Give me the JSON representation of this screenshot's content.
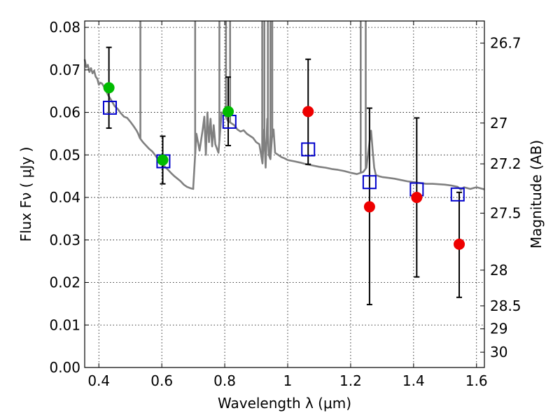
{
  "chart_data": {
    "type": "scatter",
    "xlabel": "Wavelength  λ (μm)",
    "ylabel": "Flux  Fν  ( μJy )",
    "y2label": "Magnitude (AB)",
    "xlim": [
      0.355,
      1.625
    ],
    "ylim": [
      0.0,
      0.0815
    ],
    "grid": true,
    "x_ticks": [
      0.4,
      0.6,
      0.8,
      1.0,
      1.2,
      1.4,
      1.6
    ],
    "x_tick_labels": [
      "0.4",
      "0.6",
      "0.8",
      "1",
      "1.2",
      "1.4",
      "1.6"
    ],
    "y_ticks": [
      0.0,
      0.01,
      0.02,
      0.03,
      0.04,
      0.05,
      0.06,
      0.07,
      0.08
    ],
    "y_tick_labels": [
      "0.00",
      "0.01",
      "0.02",
      "0.03",
      "0.04",
      "0.05",
      "0.06",
      "0.07",
      "0.08"
    ],
    "y2_ticks": [
      {
        "flux": 0.0763,
        "label": "26.7"
      },
      {
        "flux": 0.0575,
        "label": "27"
      },
      {
        "flux": 0.0479,
        "label": "27.2"
      },
      {
        "flux": 0.0363,
        "label": "27.5"
      },
      {
        "flux": 0.0229,
        "label": "28"
      },
      {
        "flux": 0.0145,
        "label": "28.5"
      },
      {
        "flux": 0.0091,
        "label": "29"
      },
      {
        "flux": 0.0036,
        "label": "30"
      }
    ],
    "colors": {
      "model": "#808080",
      "detection": "#00bb00",
      "upper_limit": "#ee0000",
      "model_flux": "#0000cc",
      "error_bar": "#000000"
    },
    "series": [
      {
        "kind": "model_spectrum",
        "x": [
          0.355,
          0.36,
          0.365,
          0.37,
          0.375,
          0.38,
          0.385,
          0.39,
          0.395,
          0.4,
          0.405,
          0.41,
          0.415,
          0.42,
          0.43,
          0.44,
          0.45,
          0.46,
          0.47,
          0.48,
          0.49,
          0.5,
          0.51,
          0.52,
          0.525,
          0.53,
          0.535,
          0.54,
          0.55,
          0.56,
          0.57,
          0.58,
          0.59,
          0.6,
          0.61,
          0.62,
          0.63,
          0.64,
          0.65,
          0.66,
          0.67,
          0.68,
          0.69,
          0.7,
          0.7,
          0.71,
          0.72,
          0.73,
          0.735,
          0.74,
          0.745,
          0.75,
          0.755,
          0.76,
          0.765,
          0.77,
          0.78,
          0.79,
          0.8,
          0.81,
          0.82,
          0.83,
          0.84,
          0.85,
          0.86,
          0.87,
          0.88,
          0.89,
          0.9,
          0.91,
          0.92,
          0.925,
          0.93,
          0.935,
          0.94,
          0.945,
          0.95,
          0.955,
          0.96,
          0.97,
          0.98,
          0.99,
          1.0,
          1.02,
          1.04,
          1.06,
          1.08,
          1.1,
          1.12,
          1.14,
          1.16,
          1.18,
          1.2,
          1.22,
          1.24,
          1.25,
          1.26,
          1.265,
          1.27,
          1.275,
          1.28,
          1.29,
          1.3,
          1.32,
          1.34,
          1.36,
          1.38,
          1.4,
          1.42,
          1.44,
          1.46,
          1.48,
          1.5,
          1.52,
          1.54,
          1.55,
          1.56,
          1.58,
          1.6,
          1.625
        ],
        "y": [
          0.0725,
          0.0706,
          0.0712,
          0.0695,
          0.0704,
          0.0692,
          0.0698,
          0.0684,
          0.0679,
          0.0665,
          0.067,
          0.0668,
          0.0662,
          0.0655,
          0.064,
          0.0628,
          0.0615,
          0.0608,
          0.0598,
          0.059,
          0.0587,
          0.0578,
          0.0568,
          0.0557,
          0.055,
          0.054,
          0.0535,
          0.053,
          0.0522,
          0.0514,
          0.0508,
          0.0498,
          0.0488,
          0.048,
          0.0472,
          0.0465,
          0.0457,
          0.045,
          0.0444,
          0.0438,
          0.043,
          0.0425,
          0.0422,
          0.042,
          0.0425,
          0.055,
          0.051,
          0.056,
          0.059,
          0.05,
          0.06,
          0.053,
          0.0585,
          0.052,
          0.057,
          0.0525,
          0.0505,
          0.06,
          0.0595,
          0.058,
          0.0575,
          0.057,
          0.056,
          0.0555,
          0.0558,
          0.055,
          0.0545,
          0.054,
          0.053,
          0.0525,
          0.048,
          0.056,
          0.047,
          0.0585,
          0.05,
          0.049,
          0.054,
          0.056,
          0.0505,
          0.05,
          0.0495,
          0.0492,
          0.0488,
          0.0485,
          0.0482,
          0.0478,
          0.0475,
          0.0472,
          0.047,
          0.0467,
          0.0465,
          0.0462,
          0.0458,
          0.0455,
          0.046,
          0.047,
          0.053,
          0.0557,
          0.051,
          0.047,
          0.0453,
          0.045,
          0.0448,
          0.0446,
          0.0444,
          0.0441,
          0.0438,
          0.0436,
          0.0434,
          0.0432,
          0.0432,
          0.0431,
          0.043,
          0.0428,
          0.0425,
          0.0418,
          0.0424,
          0.042,
          0.0424,
          0.0419
        ],
        "spikes": [
          0.532,
          0.706,
          0.783,
          0.804,
          0.817,
          0.919,
          0.926,
          0.937,
          0.945,
          0.951,
          1.232,
          1.248
        ]
      },
      {
        "kind": "model_flux",
        "marker": "open-square",
        "x": [
          0.435,
          0.605,
          0.815,
          1.065,
          1.26,
          1.41,
          1.54
        ],
        "y": [
          0.0611,
          0.0485,
          0.0578,
          0.0513,
          0.0436,
          0.0419,
          0.0407
        ]
      },
      {
        "kind": "detection",
        "marker": "filled-circle",
        "x": [
          0.432,
          0.603,
          0.811
        ],
        "y": [
          0.0658,
          0.0488,
          0.0602
        ],
        "yerr_low": [
          0.0563,
          0.0432,
          0.0522
        ],
        "yerr_high": [
          0.0753,
          0.0544,
          0.0683
        ]
      },
      {
        "kind": "low_significance",
        "marker": "filled-circle",
        "x": [
          1.065,
          1.26,
          1.41,
          1.545
        ],
        "y": [
          0.0602,
          0.0378,
          0.04,
          0.029
        ],
        "yerr_low": [
          0.0478,
          0.0148,
          0.0213,
          0.0165
        ],
        "yerr_high": [
          0.0725,
          0.061,
          0.0587,
          0.0412
        ]
      }
    ]
  }
}
